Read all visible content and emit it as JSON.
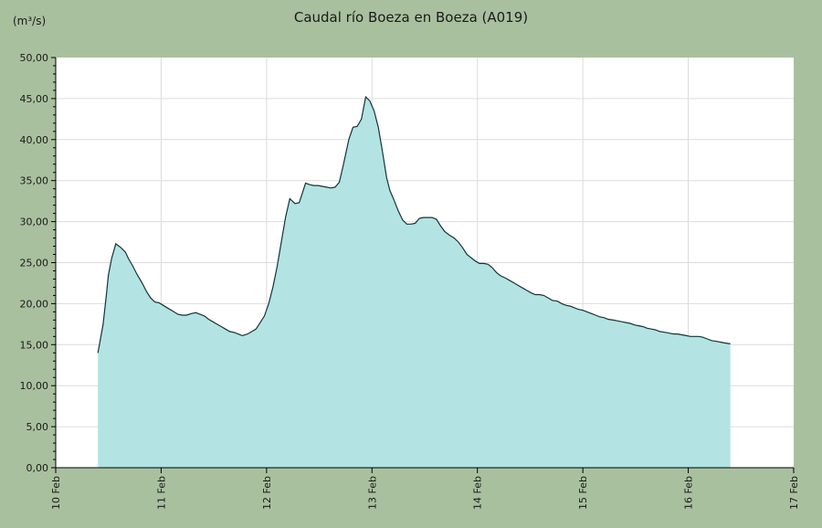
{
  "chart_data": {
    "type": "area",
    "title": "Caudal río Boeza en Boeza  (A019)",
    "ylabel": "(m³/s)",
    "xlabel": "",
    "x_ticks": [
      "10 Feb",
      "11 Feb",
      "12 Feb",
      "13 Feb",
      "14 Feb",
      "15 Feb",
      "16 Feb",
      "17 Feb"
    ],
    "xlim": [
      10,
      17
    ],
    "y_ticks": [
      "0,00",
      "5,00",
      "10,00",
      "15,00",
      "20,00",
      "25,00",
      "30,00",
      "35,00",
      "40,00",
      "45,00",
      "50,00"
    ],
    "ylim": [
      0,
      50
    ],
    "grid": true,
    "colors": {
      "fill": "#b3e3e3",
      "line": "#123535",
      "background": "#a9c09f",
      "plot_bg": "#ffffff"
    },
    "series": [
      {
        "x": [
          10.4,
          10.45,
          10.48,
          10.5,
          10.53,
          10.57,
          10.6,
          10.62,
          10.66,
          10.69,
          10.73,
          10.77,
          10.82,
          10.86,
          10.9,
          10.94,
          10.98,
          11.02,
          11.07,
          11.11,
          11.16,
          11.2,
          11.24,
          11.29,
          11.33,
          11.37,
          11.41,
          11.45,
          11.49,
          11.53,
          11.57,
          11.61,
          11.65,
          11.69,
          11.73,
          11.77,
          11.82,
          11.86,
          11.9,
          11.94,
          11.98,
          12.02,
          12.06,
          12.1,
          12.14,
          12.18,
          12.22,
          12.27,
          12.31,
          12.34,
          12.37,
          12.41,
          12.45,
          12.49,
          12.53,
          12.57,
          12.61,
          12.65,
          12.69,
          12.73,
          12.78,
          12.82,
          12.86,
          12.9,
          12.94,
          12.98,
          13.02,
          13.06,
          13.1,
          13.14,
          13.17,
          13.21,
          13.25,
          13.29,
          13.33,
          13.37,
          13.41,
          13.45,
          13.49,
          13.53,
          13.57,
          13.61,
          13.65,
          13.69,
          13.73,
          13.78,
          13.82,
          13.86,
          13.9,
          13.94,
          13.98,
          14.02,
          14.06,
          14.1,
          14.14,
          14.18,
          14.22,
          14.27,
          14.31,
          14.35,
          14.39,
          14.43,
          14.47,
          14.51,
          14.55,
          14.59,
          14.63,
          14.67,
          14.71,
          14.76,
          14.8,
          14.84,
          14.88,
          14.92,
          14.96,
          15.0,
          15.04,
          15.08,
          15.12,
          15.16,
          15.2,
          15.24,
          15.29,
          15.33,
          15.37,
          15.41,
          15.45,
          15.49,
          15.53,
          15.57,
          15.61,
          15.65,
          15.69,
          15.73,
          15.78,
          15.82,
          15.86,
          15.9,
          15.94,
          15.98,
          16.02,
          16.06,
          16.1,
          16.14,
          16.18,
          16.22,
          16.27,
          16.31,
          16.35,
          16.4
        ],
        "y": [
          14.0,
          17.5,
          21.0,
          23.5,
          25.5,
          27.3,
          27.0,
          26.8,
          26.3,
          25.5,
          24.6,
          23.6,
          22.5,
          21.5,
          20.7,
          20.2,
          20.1,
          19.8,
          19.4,
          19.1,
          18.7,
          18.6,
          18.6,
          18.8,
          18.9,
          18.7,
          18.5,
          18.1,
          17.8,
          17.5,
          17.2,
          16.9,
          16.6,
          16.5,
          16.3,
          16.1,
          16.3,
          16.6,
          16.9,
          17.7,
          18.5,
          20.0,
          22.0,
          24.5,
          27.5,
          30.5,
          32.8,
          32.2,
          32.3,
          33.5,
          34.7,
          34.5,
          34.4,
          34.4,
          34.3,
          34.2,
          34.1,
          34.2,
          34.8,
          37.0,
          40.0,
          41.5,
          41.6,
          42.5,
          45.2,
          44.7,
          43.5,
          41.5,
          38.5,
          35.3,
          33.8,
          32.6,
          31.3,
          30.2,
          29.7,
          29.7,
          29.8,
          30.4,
          30.5,
          30.5,
          30.5,
          30.3,
          29.5,
          28.8,
          28.4,
          28.0,
          27.5,
          26.8,
          26.0,
          25.6,
          25.2,
          24.9,
          24.9,
          24.8,
          24.4,
          23.8,
          23.4,
          23.1,
          22.8,
          22.5,
          22.2,
          21.9,
          21.6,
          21.3,
          21.1,
          21.1,
          21.0,
          20.7,
          20.4,
          20.3,
          20.0,
          19.8,
          19.7,
          19.5,
          19.3,
          19.2,
          19.0,
          18.8,
          18.6,
          18.4,
          18.3,
          18.1,
          18.0,
          17.9,
          17.8,
          17.7,
          17.6,
          17.4,
          17.3,
          17.2,
          17.0,
          16.9,
          16.8,
          16.6,
          16.5,
          16.4,
          16.3,
          16.3,
          16.2,
          16.1,
          16.0,
          16.0,
          16.0,
          15.9,
          15.7,
          15.5,
          15.4,
          15.3,
          15.2,
          15.1
        ]
      }
    ]
  }
}
